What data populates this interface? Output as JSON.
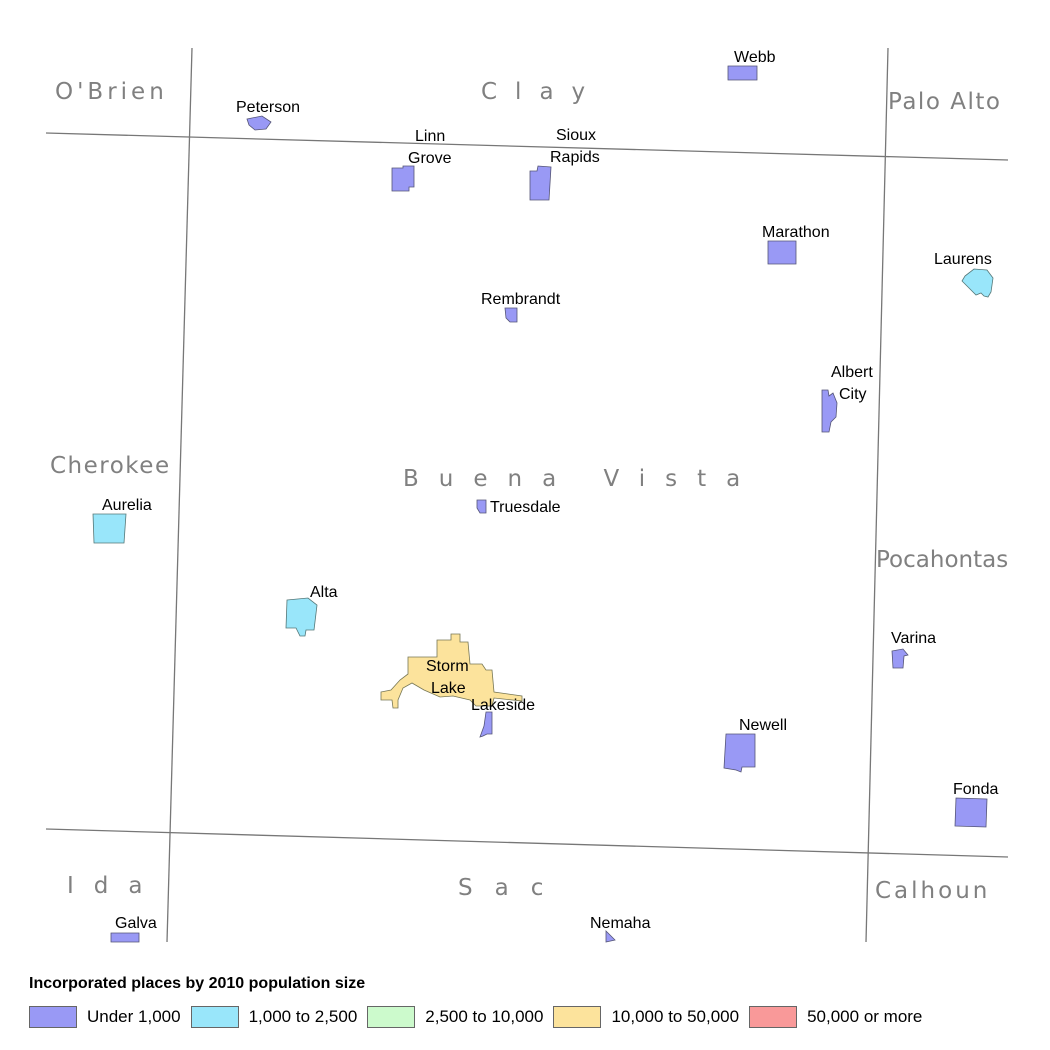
{
  "colors": {
    "under_1000": "#9999f5",
    "1000_2500": "#99e6fa",
    "2500_10000": "#ccfacc",
    "10000_50000": "#fce39c",
    "50000_plus": "#f99999",
    "boundary": "#777777",
    "county_label": "#808080"
  },
  "counties": {
    "obrien": "O'Brien",
    "clay": "Clay",
    "palo_alto": "Palo Alto",
    "cherokee": "Cherokee",
    "buena_vista": "Buena Vista",
    "pocahontas": "Pocahontas",
    "ida": "Ida",
    "sac": "Sac",
    "calhoun": "Calhoun"
  },
  "places": {
    "webb": "Webb",
    "peterson": "Peterson",
    "linn_grove_1": "Linn",
    "linn_grove_2": "Grove",
    "sioux_rapids_1": "Sioux",
    "sioux_rapids_2": "Rapids",
    "marathon": "Marathon",
    "laurens": "Laurens",
    "rembrandt": "Rembrandt",
    "albert_city_1": "Albert",
    "albert_city_2": "City",
    "aurelia": "Aurelia",
    "truesdale": "Truesdale",
    "alta": "Alta",
    "storm_lake_1": "Storm",
    "storm_lake_2": "Lake",
    "lakeside": "Lakeside",
    "varina": "Varina",
    "newell": "Newell",
    "fonda": "Fonda",
    "galva": "Galva",
    "nemaha": "Nemaha"
  },
  "legend": {
    "title": "Incorporated places by 2010 population size",
    "items": [
      {
        "label": "Under 1,000",
        "color": "#9999f5"
      },
      {
        "label": "1,000 to 2,500",
        "color": "#99e6fa"
      },
      {
        "label": "2,500 to 10,000",
        "color": "#ccfacc"
      },
      {
        "label": "10,000 to 50,000",
        "color": "#fce39c"
      },
      {
        "label": "50,000 or more",
        "color": "#f99999"
      }
    ]
  }
}
